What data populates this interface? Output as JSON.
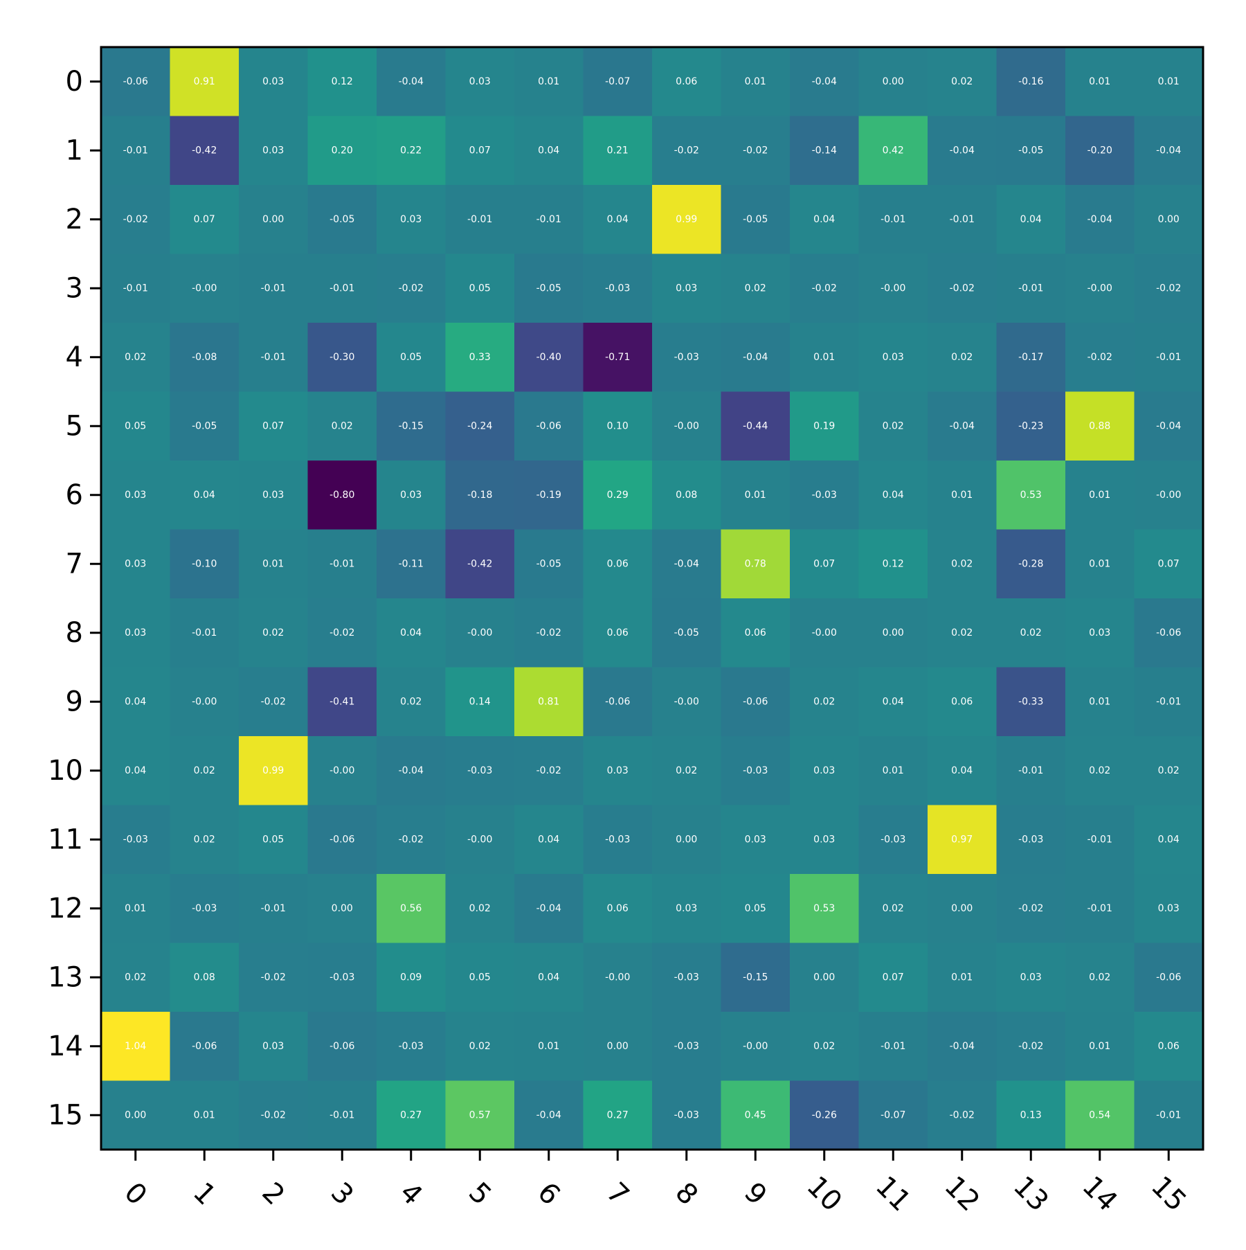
{
  "chart_data": {
    "type": "heatmap",
    "colormap": "viridis",
    "value_range": [
      -0.8,
      1.04
    ],
    "x_tick_labels": [
      "0",
      "1",
      "2",
      "3",
      "4",
      "5",
      "6",
      "7",
      "8",
      "9",
      "10",
      "11",
      "12",
      "13",
      "14",
      "15"
    ],
    "y_tick_labels": [
      "0",
      "1",
      "2",
      "3",
      "4",
      "5",
      "6",
      "7",
      "8",
      "9",
      "10",
      "11",
      "12",
      "13",
      "14",
      "15"
    ],
    "x_tick_rotation_deg": 45,
    "cell_annotation_color": "#ffffff",
    "values": [
      [
        "-0.06",
        "0.91",
        "0.03",
        "0.12",
        "-0.04",
        "0.03",
        "0.01",
        "-0.07",
        "0.06",
        "0.01",
        "-0.04",
        "0.00",
        "0.02",
        "-0.16",
        "0.01",
        "0.01"
      ],
      [
        "-0.01",
        "-0.42",
        "0.03",
        "0.20",
        "0.22",
        "0.07",
        "0.04",
        "0.21",
        "-0.02",
        "-0.02",
        "-0.14",
        "0.42",
        "-0.04",
        "-0.05",
        "-0.20",
        "-0.04"
      ],
      [
        "-0.02",
        "0.07",
        "0.00",
        "-0.05",
        "0.03",
        "-0.01",
        "-0.01",
        "0.04",
        "0.99",
        "-0.05",
        "0.04",
        "-0.01",
        "-0.01",
        "0.04",
        "-0.04",
        "0.00"
      ],
      [
        "-0.01",
        "-0.00",
        "-0.01",
        "-0.01",
        "-0.02",
        "0.05",
        "-0.05",
        "-0.03",
        "0.03",
        "0.02",
        "-0.02",
        "-0.00",
        "-0.02",
        "-0.01",
        "-0.00",
        "-0.02"
      ],
      [
        "0.02",
        "-0.08",
        "-0.01",
        "-0.30",
        "0.05",
        "0.33",
        "-0.40",
        "-0.71",
        "-0.03",
        "-0.04",
        "0.01",
        "0.03",
        "0.02",
        "-0.17",
        "-0.02",
        "-0.01"
      ],
      [
        "0.05",
        "-0.05",
        "0.07",
        "0.02",
        "-0.15",
        "-0.24",
        "-0.06",
        "0.10",
        "-0.00",
        "-0.44",
        "0.19",
        "0.02",
        "-0.04",
        "-0.23",
        "0.88",
        "-0.04"
      ],
      [
        "0.03",
        "0.04",
        "0.03",
        "-0.80",
        "0.03",
        "-0.18",
        "-0.19",
        "0.29",
        "0.08",
        "0.01",
        "-0.03",
        "0.04",
        "0.01",
        "0.53",
        "0.01",
        "-0.00"
      ],
      [
        "0.03",
        "-0.10",
        "0.01",
        "-0.01",
        "-0.11",
        "-0.42",
        "-0.05",
        "0.06",
        "-0.04",
        "0.78",
        "0.07",
        "0.12",
        "0.02",
        "-0.28",
        "0.01",
        "0.07"
      ],
      [
        "0.03",
        "-0.01",
        "0.02",
        "-0.02",
        "0.04",
        "-0.00",
        "-0.02",
        "0.06",
        "-0.05",
        "0.06",
        "-0.00",
        "0.00",
        "0.02",
        "0.02",
        "0.03",
        "-0.06"
      ],
      [
        "0.04",
        "-0.00",
        "-0.02",
        "-0.41",
        "0.02",
        "0.14",
        "0.81",
        "-0.06",
        "-0.00",
        "-0.06",
        "0.02",
        "0.04",
        "0.06",
        "-0.33",
        "0.01",
        "-0.01"
      ],
      [
        "0.04",
        "0.02",
        "0.99",
        "-0.00",
        "-0.04",
        "-0.03",
        "-0.02",
        "0.03",
        "0.02",
        "-0.03",
        "0.03",
        "0.01",
        "0.04",
        "-0.01",
        "0.02",
        "0.02"
      ],
      [
        "-0.03",
        "0.02",
        "0.05",
        "-0.06",
        "-0.02",
        "-0.00",
        "0.04",
        "-0.03",
        "0.00",
        "0.03",
        "0.03",
        "-0.03",
        "0.97",
        "-0.03",
        "-0.01",
        "0.04"
      ],
      [
        "0.01",
        "-0.03",
        "-0.01",
        "0.00",
        "0.56",
        "0.02",
        "-0.04",
        "0.06",
        "0.03",
        "0.05",
        "0.53",
        "0.02",
        "0.00",
        "-0.02",
        "-0.01",
        "0.03"
      ],
      [
        "0.02",
        "0.08",
        "-0.02",
        "-0.03",
        "0.09",
        "0.05",
        "0.04",
        "-0.00",
        "-0.03",
        "-0.15",
        "0.00",
        "0.07",
        "0.01",
        "0.03",
        "0.02",
        "-0.06"
      ],
      [
        "1.04",
        "-0.06",
        "0.03",
        "-0.06",
        "-0.03",
        "0.02",
        "0.01",
        "0.00",
        "-0.03",
        "-0.00",
        "0.02",
        "-0.01",
        "-0.04",
        "-0.02",
        "0.01",
        "0.06"
      ],
      [
        "0.00",
        "0.01",
        "-0.02",
        "-0.01",
        "0.27",
        "0.57",
        "-0.04",
        "0.27",
        "-0.03",
        "0.45",
        "-0.26",
        "-0.07",
        "-0.02",
        "0.13",
        "0.54",
        "-0.01"
      ]
    ]
  }
}
